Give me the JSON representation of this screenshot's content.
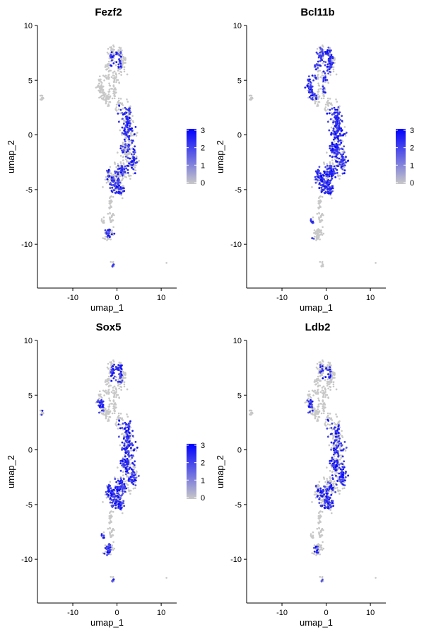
{
  "chart_data": [
    {
      "type": "scatter",
      "title": "Fezf2",
      "xlabel": "umap_1",
      "ylabel": "umap_2",
      "xticks": [
        -10,
        0,
        10
      ],
      "yticks": [
        10,
        5,
        0,
        -5,
        -10
      ],
      "xlim": [
        -18,
        13.5
      ],
      "ylim": [
        -14,
        10
      ],
      "show_legend": true,
      "legend": {
        "ticks": [
          3,
          2,
          1,
          0
        ],
        "range": [
          0,
          3
        ]
      },
      "high_regions": [
        {
          "x": [
            0.2,
            4.6
          ],
          "y": [
            -2.0,
            2.8
          ]
        },
        {
          "x": [
            1.2,
            5.4
          ],
          "y": [
            -3.6,
            -1.4
          ]
        },
        {
          "x": [
            -2.6,
            2.4
          ],
          "y": [
            -5.4,
            -2.8
          ]
        },
        {
          "x": [
            -3.0,
            -0.4
          ],
          "y": [
            -9.4,
            -8.6
          ]
        },
        {
          "x": [
            -1.2,
            -0.4
          ],
          "y": [
            -12.2,
            -11.6
          ]
        },
        {
          "x": [
            -1.6,
            1.0
          ],
          "y": [
            6.0,
            7.6
          ]
        }
      ],
      "density": 0.48
    },
    {
      "type": "scatter",
      "title": "Bcl11b",
      "xlabel": "umap_1",
      "ylabel": "umap_2",
      "xticks": [
        -10,
        0,
        10
      ],
      "yticks": [
        10,
        5,
        0,
        -5,
        -10
      ],
      "xlim": [
        -18,
        13.5
      ],
      "ylim": [
        -14,
        10
      ],
      "show_legend": true,
      "legend": {
        "ticks": [
          3,
          2,
          1,
          0
        ],
        "range": [
          0,
          3
        ]
      },
      "high_regions": [
        {
          "x": [
            -2.6,
            1.6
          ],
          "y": [
            5.6,
            8.0
          ]
        },
        {
          "x": [
            -1.0,
            1.6
          ],
          "y": [
            3.6,
            5.4
          ]
        },
        {
          "x": [
            -4.8,
            -2.2
          ],
          "y": [
            3.2,
            6.0
          ]
        },
        {
          "x": [
            0.2,
            4.6
          ],
          "y": [
            -2.2,
            2.6
          ]
        },
        {
          "x": [
            1.2,
            5.4
          ],
          "y": [
            -3.6,
            -1.4
          ]
        },
        {
          "x": [
            -2.6,
            2.4
          ],
          "y": [
            -5.4,
            -2.8
          ]
        },
        {
          "x": [
            -3.6,
            -2.6
          ],
          "y": [
            -8.2,
            -7.6
          ]
        },
        {
          "x": [
            -3.2,
            -2.8
          ],
          "y": [
            -9.8,
            -9.4
          ]
        }
      ],
      "density": 0.65
    },
    {
      "type": "scatter",
      "title": "Sox5",
      "xlabel": "umap_1",
      "ylabel": "umap_2",
      "xticks": [
        -10,
        0,
        10
      ],
      "yticks": [
        10,
        5,
        0,
        -5,
        -10
      ],
      "xlim": [
        -18,
        13.5
      ],
      "ylim": [
        -14,
        10
      ],
      "show_legend": true,
      "legend": {
        "ticks": [
          3,
          2,
          1,
          0
        ],
        "range": [
          0,
          3
        ]
      },
      "high_regions": [
        {
          "x": [
            0.2,
            4.8
          ],
          "y": [
            -2.0,
            2.8
          ]
        },
        {
          "x": [
            1.6,
            5.4
          ],
          "y": [
            -3.6,
            -1.2
          ]
        },
        {
          "x": [
            -2.6,
            2.6
          ],
          "y": [
            -5.6,
            -2.6
          ]
        },
        {
          "x": [
            -3.6,
            -2.4
          ],
          "y": [
            -8.6,
            -7.4
          ]
        },
        {
          "x": [
            -3.4,
            -1.4
          ],
          "y": [
            -9.8,
            -8.6
          ]
        },
        {
          "x": [
            -17.2,
            -16.4
          ],
          "y": [
            3.2,
            3.6
          ]
        },
        {
          "x": [
            -1.4,
            1.2
          ],
          "y": [
            6.0,
            7.8
          ]
        },
        {
          "x": [
            -5.0,
            -3.0
          ],
          "y": [
            3.4,
            4.6
          ]
        },
        {
          "x": [
            -1.2,
            -0.4
          ],
          "y": [
            -12.2,
            -11.6
          ]
        }
      ],
      "density": 0.6
    },
    {
      "type": "scatter",
      "title": "Ldb2",
      "xlabel": "umap_1",
      "ylabel": "umap_2",
      "xticks": [
        -10,
        0,
        10
      ],
      "yticks": [
        10,
        5,
        0,
        -5,
        -10
      ],
      "xlim": [
        -18,
        13.5
      ],
      "ylim": [
        -14,
        10
      ],
      "show_legend": false,
      "legend": null,
      "high_regions": [
        {
          "x": [
            0.2,
            4.6
          ],
          "y": [
            -2.0,
            2.8
          ]
        },
        {
          "x": [
            1.2,
            5.4
          ],
          "y": [
            -3.6,
            -1.4
          ]
        },
        {
          "x": [
            -2.6,
            2.4
          ],
          "y": [
            -5.4,
            -2.8
          ]
        },
        {
          "x": [
            -3.2,
            -1.8
          ],
          "y": [
            -9.6,
            -8.6
          ]
        },
        {
          "x": [
            -1.2,
            -0.4
          ],
          "y": [
            -12.2,
            -11.6
          ]
        },
        {
          "x": [
            -1.4,
            1.2
          ],
          "y": [
            6.4,
            7.8
          ]
        },
        {
          "x": [
            -5.0,
            -3.0
          ],
          "y": [
            3.4,
            4.6
          ]
        }
      ],
      "density": 0.42
    }
  ],
  "colors": {
    "low": "#c8c8c8",
    "high": "#0000ff",
    "axis": "#000000"
  }
}
